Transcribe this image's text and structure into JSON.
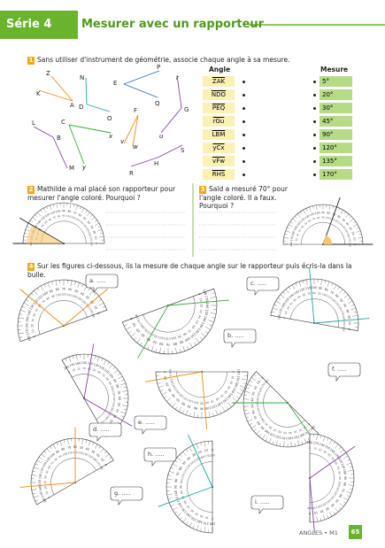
{
  "header": {
    "series": "Série 4",
    "title": "Mesurer avec un rapporteur"
  },
  "exercise1": {
    "number": "1",
    "instruction": "Sans utiliser d'instrument de géométrie, associe chaque angle à sa mesure.",
    "column_angle": "Angle",
    "column_measure": "Mesure",
    "angles": [
      "ZAK",
      "NDO",
      "PEQ",
      "rGu",
      "LBM",
      "yCx",
      "vFw",
      "RHS"
    ],
    "measures": [
      "5°",
      "20°",
      "30°",
      "45°",
      "90°",
      "120°",
      "135°",
      "170°"
    ],
    "figure_labels": [
      "Z",
      "K",
      "A",
      "N",
      "D",
      "O",
      "E",
      "P",
      "Q",
      "r",
      "G",
      "u",
      "L",
      "B",
      "M",
      "C",
      "y",
      "x",
      "F",
      "v",
      "w",
      "H",
      "R",
      "S"
    ]
  },
  "exercise2": {
    "number": "2",
    "text": "Mathilde a mal placé son rapporteur pour mesurer l'angle coloré. Pourquoi ?"
  },
  "exercise3": {
    "number": "3",
    "text": "Saïd a mesuré 70° pour l'angle coloré. Il a faux. Pourquoi ?"
  },
  "exercise4": {
    "number": "4",
    "instruction": "Sur les figures ci-dessous, lis la mesure de chaque angle sur le rapporteur puis écris-la dans la bulle.",
    "bubbles": [
      "a. .....",
      "b. .....",
      "c. .....",
      "d. .....",
      "e. .....",
      "f. .....",
      "g. .....",
      "h. .....",
      "i. ....."
    ]
  },
  "protractor_graduations": [
    "0",
    "10",
    "20",
    "30",
    "40",
    "50",
    "60",
    "70",
    "80",
    "90",
    "100",
    "110",
    "120",
    "130",
    "140",
    "150",
    "160",
    "170",
    "180"
  ],
  "footer": {
    "section": "ANGLES • M1",
    "page": "65"
  }
}
